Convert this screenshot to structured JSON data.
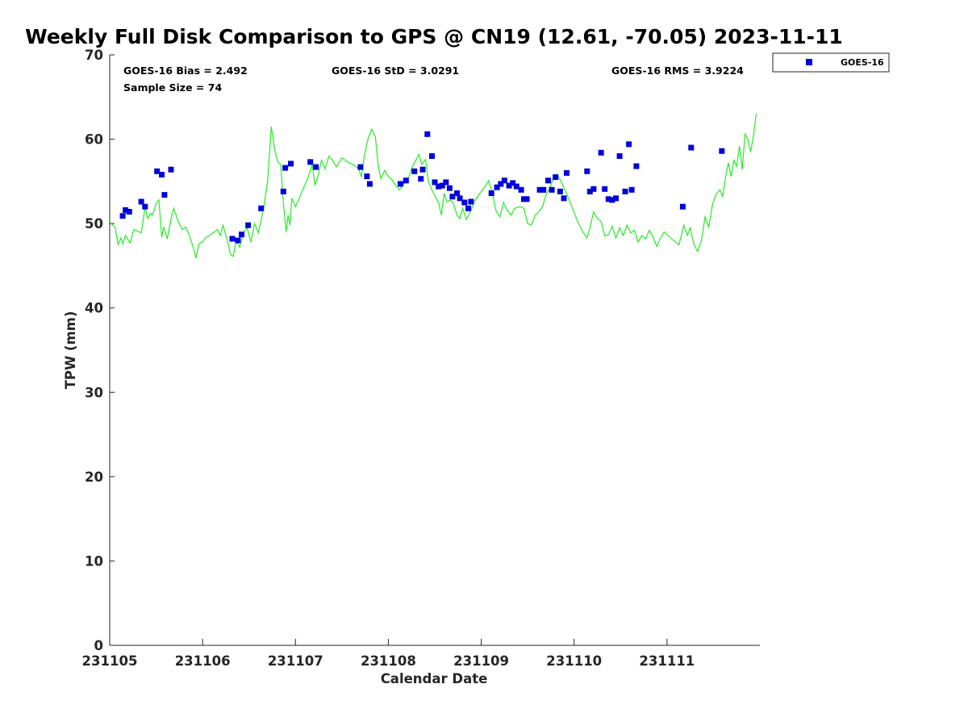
{
  "chart_data": {
    "type": "scatter",
    "title": "Weekly Full Disk Comparison to GPS @ CN19 (12.61, -70.05) 2023-11-11",
    "xlabel": "Calendar Date",
    "ylabel": "TPW (mm)",
    "x_unit": "days",
    "xlim": [
      0,
      7.0
    ],
    "ylim": [
      0,
      70
    ],
    "x_ticks": [
      {
        "value": 0,
        "label": "231105"
      },
      {
        "value": 1,
        "label": "231106"
      },
      {
        "value": 2,
        "label": "231107"
      },
      {
        "value": 3,
        "label": "231108"
      },
      {
        "value": 4,
        "label": "231109"
      },
      {
        "value": 5,
        "label": "231110"
      },
      {
        "value": 6,
        "label": "231111"
      }
    ],
    "y_ticks": [
      0,
      10,
      20,
      30,
      40,
      50,
      60,
      70
    ],
    "annotations": {
      "bias": "GOES-16 Bias = 2.492",
      "std": "GOES-16 StD = 3.0291",
      "rms": "GOES-16 RMS = 3.9224",
      "sample": "Sample Size = 74"
    },
    "legend": {
      "position": "top-right-outside",
      "entries": [
        "GOES-16"
      ]
    },
    "colors": {
      "goes": "#0000dd",
      "gps": "#22ee22"
    },
    "series": [
      {
        "name": "GOES-16",
        "marker": "square",
        "color": "#0000dd",
        "points": [
          [
            0.14,
            50.9
          ],
          [
            0.17,
            51.6
          ],
          [
            0.21,
            51.4
          ],
          [
            0.34,
            52.6
          ],
          [
            0.38,
            52.0
          ],
          [
            0.51,
            56.2
          ],
          [
            0.56,
            55.8
          ],
          [
            0.59,
            53.4
          ],
          [
            0.66,
            56.4
          ],
          [
            1.32,
            48.2
          ],
          [
            1.38,
            48.0
          ],
          [
            1.42,
            48.7
          ],
          [
            1.49,
            49.8
          ],
          [
            1.63,
            51.8
          ],
          [
            1.87,
            53.8
          ],
          [
            1.89,
            56.6
          ],
          [
            1.95,
            57.1
          ],
          [
            2.16,
            57.3
          ],
          [
            2.22,
            56.7
          ],
          [
            2.7,
            56.7
          ],
          [
            2.77,
            55.6
          ],
          [
            2.8,
            54.7
          ],
          [
            3.13,
            54.7
          ],
          [
            3.19,
            55.1
          ],
          [
            3.28,
            56.2
          ],
          [
            3.35,
            55.3
          ],
          [
            3.37,
            56.4
          ],
          [
            3.42,
            60.6
          ],
          [
            3.47,
            58.0
          ],
          [
            3.5,
            54.9
          ],
          [
            3.54,
            54.4
          ],
          [
            3.58,
            54.5
          ],
          [
            3.62,
            54.9
          ],
          [
            3.66,
            54.2
          ],
          [
            3.69,
            53.2
          ],
          [
            3.74,
            53.6
          ],
          [
            3.77,
            53.0
          ],
          [
            3.82,
            52.5
          ],
          [
            3.86,
            51.8
          ],
          [
            3.89,
            52.6
          ],
          [
            4.11,
            53.6
          ],
          [
            4.17,
            54.3
          ],
          [
            4.21,
            54.7
          ],
          [
            4.25,
            55.1
          ],
          [
            4.3,
            54.5
          ],
          [
            4.34,
            54.8
          ],
          [
            4.38,
            54.4
          ],
          [
            4.43,
            54.0
          ],
          [
            4.46,
            52.9
          ],
          [
            4.49,
            52.9
          ],
          [
            4.63,
            54.0
          ],
          [
            4.67,
            54.0
          ],
          [
            4.72,
            55.1
          ],
          [
            4.76,
            54.0
          ],
          [
            4.8,
            55.5
          ],
          [
            4.85,
            53.8
          ],
          [
            4.89,
            53.0
          ],
          [
            4.92,
            56.0
          ],
          [
            5.14,
            56.2
          ],
          [
            5.17,
            53.8
          ],
          [
            5.21,
            54.1
          ],
          [
            5.29,
            58.4
          ],
          [
            5.33,
            54.1
          ],
          [
            5.37,
            52.9
          ],
          [
            5.41,
            52.8
          ],
          [
            5.45,
            53.0
          ],
          [
            5.49,
            58.0
          ],
          [
            5.55,
            53.8
          ],
          [
            5.59,
            59.4
          ],
          [
            5.62,
            54.0
          ],
          [
            5.67,
            56.8
          ],
          [
            6.17,
            52.0
          ],
          [
            6.26,
            59.0
          ],
          [
            6.59,
            58.6
          ]
        ]
      },
      {
        "name": "GPS",
        "marker": "line",
        "color": "#22ee22",
        "points": [
          [
            0.0,
            50.2
          ],
          [
            0.06,
            49.5
          ],
          [
            0.09,
            47.5
          ],
          [
            0.12,
            48.3
          ],
          [
            0.14,
            47.6
          ],
          [
            0.17,
            48.6
          ],
          [
            0.22,
            47.7
          ],
          [
            0.26,
            49.3
          ],
          [
            0.3,
            49.1
          ],
          [
            0.34,
            48.9
          ],
          [
            0.38,
            51.9
          ],
          [
            0.41,
            50.6
          ],
          [
            0.44,
            51.2
          ],
          [
            0.46,
            51.0
          ],
          [
            0.5,
            52.4
          ],
          [
            0.53,
            52.8
          ],
          [
            0.56,
            48.4
          ],
          [
            0.58,
            49.6
          ],
          [
            0.62,
            48.2
          ],
          [
            0.66,
            50.6
          ],
          [
            0.69,
            51.8
          ],
          [
            0.74,
            50.2
          ],
          [
            0.78,
            49.3
          ],
          [
            0.82,
            49.6
          ],
          [
            0.86,
            48.5
          ],
          [
            0.9,
            47.2
          ],
          [
            0.93,
            45.9
          ],
          [
            0.96,
            47.6
          ],
          [
            1.0,
            47.8
          ],
          [
            1.03,
            48.3
          ],
          [
            1.1,
            48.8
          ],
          [
            1.16,
            49.3
          ],
          [
            1.19,
            48.6
          ],
          [
            1.22,
            49.8
          ],
          [
            1.26,
            48.2
          ],
          [
            1.28,
            47.4
          ],
          [
            1.3,
            46.3
          ],
          [
            1.33,
            46.1
          ],
          [
            1.36,
            48.0
          ],
          [
            1.4,
            47.2
          ],
          [
            1.44,
            48.9
          ],
          [
            1.48,
            49.5
          ],
          [
            1.52,
            47.8
          ],
          [
            1.56,
            50.0
          ],
          [
            1.6,
            48.9
          ],
          [
            1.63,
            50.4
          ],
          [
            1.66,
            52.0
          ],
          [
            1.7,
            55.0
          ],
          [
            1.74,
            61.5
          ],
          [
            1.78,
            58.5
          ],
          [
            1.81,
            57.3
          ],
          [
            1.84,
            57.0
          ],
          [
            1.87,
            52.4
          ],
          [
            1.9,
            49.0
          ],
          [
            1.92,
            51.0
          ],
          [
            1.94,
            49.8
          ],
          [
            1.96,
            53.0
          ],
          [
            2.0,
            52.0
          ],
          [
            2.04,
            53.0
          ],
          [
            2.08,
            54.0
          ],
          [
            2.14,
            55.6
          ],
          [
            2.18,
            57.0
          ],
          [
            2.21,
            54.5
          ],
          [
            2.24,
            55.5
          ],
          [
            2.28,
            57.5
          ],
          [
            2.32,
            56.5
          ],
          [
            2.36,
            58.0
          ],
          [
            2.4,
            57.5
          ],
          [
            2.44,
            56.7
          ],
          [
            2.5,
            57.8
          ],
          [
            2.56,
            57.3
          ],
          [
            2.62,
            57.0
          ],
          [
            2.68,
            56.5
          ],
          [
            2.71,
            55.5
          ],
          [
            2.74,
            58.0
          ],
          [
            2.78,
            60.0
          ],
          [
            2.82,
            61.2
          ],
          [
            2.86,
            60.3
          ],
          [
            2.89,
            56.9
          ],
          [
            2.92,
            55.3
          ],
          [
            2.96,
            56.3
          ],
          [
            3.0,
            55.6
          ],
          [
            3.04,
            55.2
          ],
          [
            3.08,
            54.5
          ],
          [
            3.12,
            54.0
          ],
          [
            3.16,
            54.6
          ],
          [
            3.22,
            55.5
          ],
          [
            3.26,
            56.8
          ],
          [
            3.3,
            57.6
          ],
          [
            3.33,
            58.2
          ],
          [
            3.36,
            57.0
          ],
          [
            3.4,
            57.6
          ],
          [
            3.43,
            55.0
          ],
          [
            3.46,
            54.2
          ],
          [
            3.5,
            53.3
          ],
          [
            3.54,
            52.5
          ],
          [
            3.57,
            51.0
          ],
          [
            3.6,
            53.6
          ],
          [
            3.63,
            52.6
          ],
          [
            3.67,
            52.8
          ],
          [
            3.7,
            52.4
          ],
          [
            3.74,
            51.0
          ],
          [
            3.77,
            50.6
          ],
          [
            3.8,
            51.8
          ],
          [
            3.84,
            50.5
          ],
          [
            3.88,
            51.3
          ],
          [
            3.92,
            52.5
          ],
          [
            3.98,
            53.5
          ],
          [
            4.04,
            54.4
          ],
          [
            4.08,
            55.1
          ],
          [
            4.12,
            53.6
          ],
          [
            4.16,
            51.5
          ],
          [
            4.2,
            50.8
          ],
          [
            4.24,
            52.5
          ],
          [
            4.28,
            51.6
          ],
          [
            4.32,
            51.0
          ],
          [
            4.36,
            51.8
          ],
          [
            4.42,
            52.0
          ],
          [
            4.46,
            51.8
          ],
          [
            4.5,
            50.0
          ],
          [
            4.54,
            49.8
          ],
          [
            4.58,
            51.0
          ],
          [
            4.62,
            51.4
          ],
          [
            4.66,
            52.0
          ],
          [
            4.7,
            53.5
          ],
          [
            4.74,
            54.2
          ],
          [
            4.78,
            55.6
          ],
          [
            4.82,
            55.8
          ],
          [
            4.86,
            55.0
          ],
          [
            4.9,
            54.0
          ],
          [
            4.94,
            53.0
          ],
          [
            5.0,
            51.3
          ],
          [
            5.06,
            49.7
          ],
          [
            5.1,
            48.9
          ],
          [
            5.14,
            48.3
          ],
          [
            5.17,
            49.5
          ],
          [
            5.21,
            51.4
          ],
          [
            5.25,
            50.6
          ],
          [
            5.29,
            50.3
          ],
          [
            5.33,
            48.5
          ],
          [
            5.37,
            48.7
          ],
          [
            5.41,
            49.7
          ],
          [
            5.45,
            48.3
          ],
          [
            5.49,
            49.5
          ],
          [
            5.53,
            48.6
          ],
          [
            5.57,
            49.8
          ],
          [
            5.61,
            48.9
          ],
          [
            5.65,
            49.2
          ],
          [
            5.69,
            47.8
          ],
          [
            5.73,
            48.6
          ],
          [
            5.77,
            48.2
          ],
          [
            5.81,
            49.2
          ],
          [
            5.85,
            48.4
          ],
          [
            5.89,
            47.3
          ],
          [
            5.93,
            48.3
          ],
          [
            5.97,
            49.0
          ],
          [
            6.01,
            48.6
          ],
          [
            6.07,
            48.0
          ],
          [
            6.13,
            47.5
          ],
          [
            6.18,
            49.8
          ],
          [
            6.22,
            48.6
          ],
          [
            6.25,
            49.5
          ],
          [
            6.29,
            47.5
          ],
          [
            6.33,
            46.7
          ],
          [
            6.37,
            48.0
          ],
          [
            6.41,
            50.8
          ],
          [
            6.45,
            49.6
          ],
          [
            6.49,
            52.3
          ],
          [
            6.53,
            53.5
          ],
          [
            6.57,
            54.0
          ],
          [
            6.6,
            53.2
          ],
          [
            6.63,
            55.5
          ],
          [
            6.66,
            57.2
          ],
          [
            6.69,
            55.6
          ],
          [
            6.72,
            57.5
          ],
          [
            6.75,
            56.8
          ],
          [
            6.78,
            59.2
          ],
          [
            6.81,
            56.4
          ],
          [
            6.84,
            60.6
          ],
          [
            6.87,
            60.0
          ],
          [
            6.9,
            58.5
          ],
          [
            6.93,
            60.3
          ],
          [
            6.96,
            63.0
          ]
        ]
      }
    ]
  }
}
